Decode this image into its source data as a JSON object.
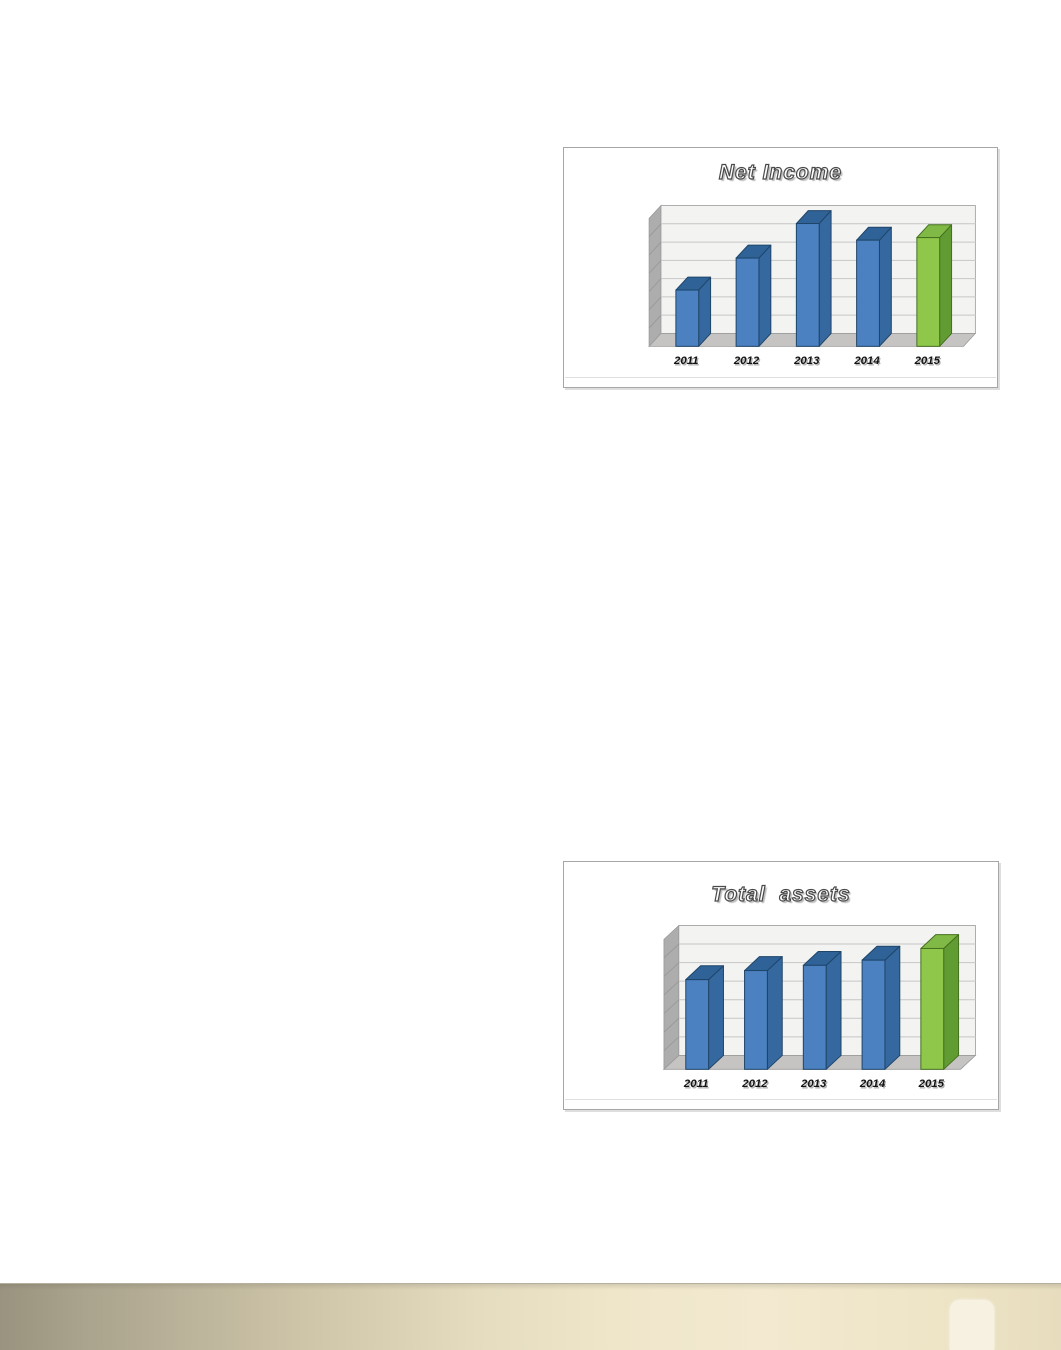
{
  "page": {
    "background": "#ffffff",
    "footer": {
      "gradient_colors": [
        "#99937f",
        "#cdc4a8",
        "#ece2c6",
        "#f2e9d0",
        "#e7ddbe"
      ],
      "tab_color": "#f7f1e1"
    }
  },
  "chart_data": [
    {
      "type": "bar",
      "variant": "3d-column",
      "title": "Net Income",
      "categories": [
        "2011",
        "2012",
        "2013",
        "2014",
        "2015"
      ],
      "values_relative": [
        0.44,
        0.69,
        0.96,
        0.83,
        0.85
      ],
      "ylim": [
        0,
        1
      ],
      "y_axis": "unlabeled",
      "xlabel": "",
      "ylabel": "",
      "legend": "none",
      "gridline_bands": 7,
      "bar_colors": [
        "blue",
        "blue",
        "blue",
        "blue",
        "green"
      ]
    },
    {
      "type": "bar",
      "variant": "3d-column",
      "title": "Total  assets",
      "categories": [
        "2011",
        "2012",
        "2013",
        "2014",
        "2015"
      ],
      "values_relative": [
        0.69,
        0.76,
        0.8,
        0.84,
        0.93
      ],
      "ylim": [
        0,
        1
      ],
      "y_axis": "unlabeled",
      "xlabel": "",
      "ylabel": "",
      "legend": "none",
      "gridline_bands": 7,
      "bar_colors": [
        "blue",
        "blue",
        "blue",
        "blue",
        "green"
      ]
    }
  ],
  "palette": {
    "blue": {
      "front": "#4b80c1",
      "top": "#2f6297",
      "side": "#35689f",
      "outline": "#1f4569"
    },
    "green": {
      "front": "#8ec74a",
      "top": "#80b945",
      "side": "#619c32",
      "outline": "#44701f"
    },
    "back_wall": "#f3f3f2",
    "gridline": "#c6c6c6",
    "side_wall": "#adadad",
    "side_wall_line": "#969696",
    "floor": "#c5c4c2",
    "wall_edge": "#9a9a9a",
    "frame_border": "#a6a6a6",
    "label_color": "#141414",
    "label_shadow": "#b0b0b0"
  }
}
